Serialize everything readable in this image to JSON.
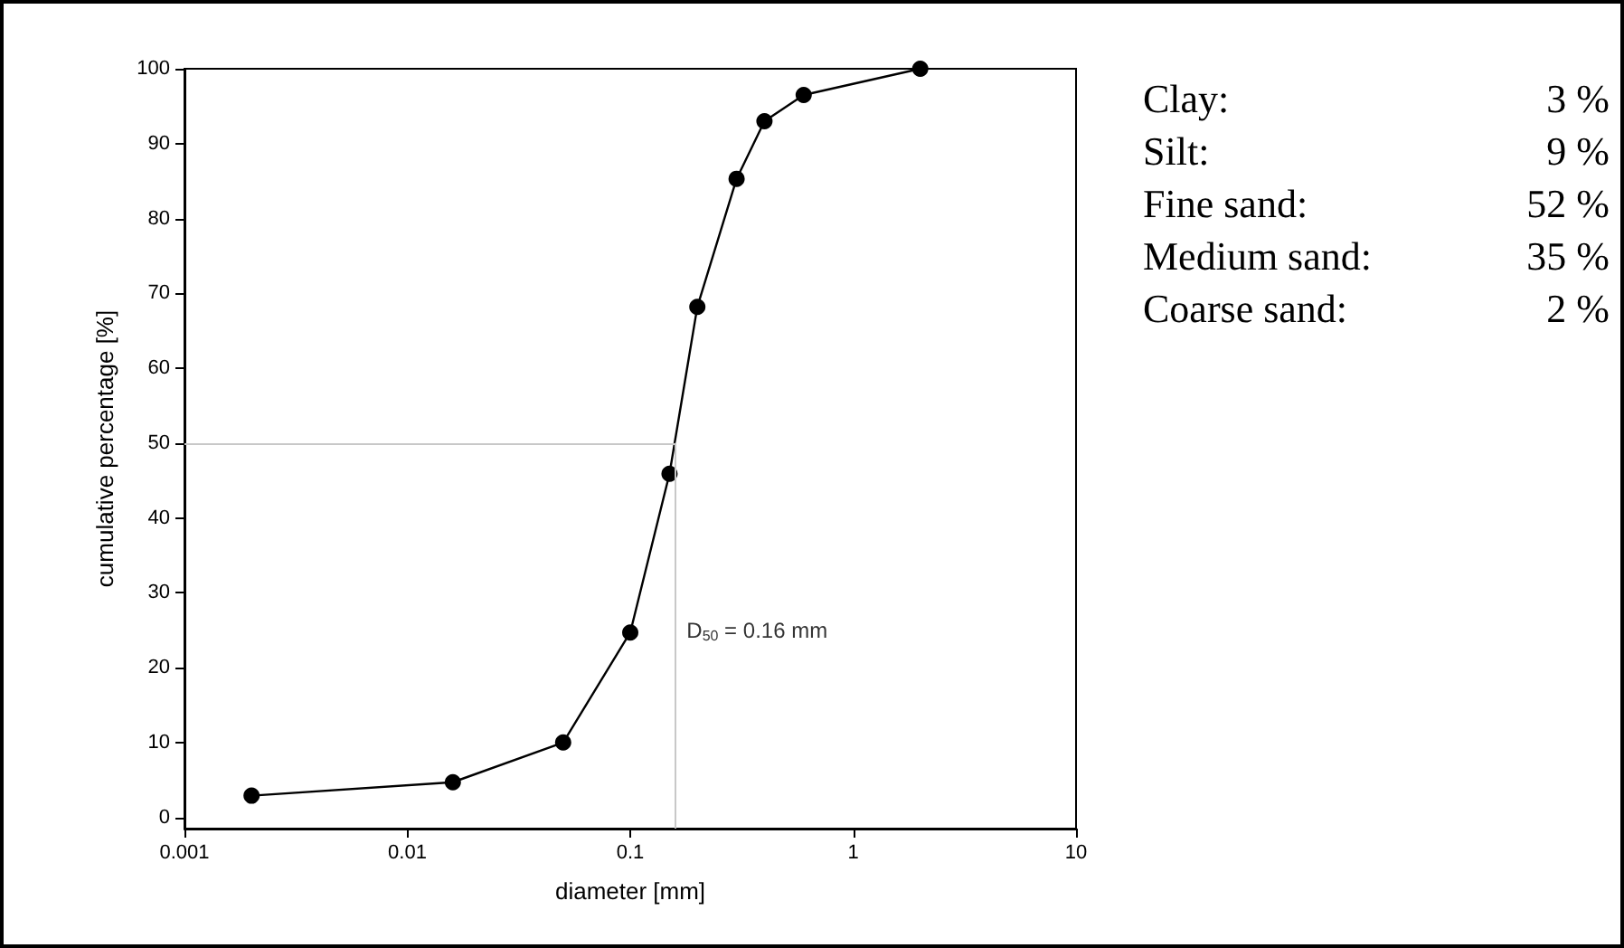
{
  "chart_data": {
    "type": "line",
    "xlabel": "diameter [mm]",
    "ylabel": "cumulative percentage [%]",
    "x": [
      0.002,
      0.016,
      0.05,
      0.1,
      0.15,
      0.2,
      0.3,
      0.4,
      0.6,
      2
    ],
    "series": [
      {
        "color": "#000000",
        "values": [
          2.9,
          4.7,
          10,
          24.7,
          45.9,
          68.2,
          85.3,
          93,
          96.5,
          100
        ]
      }
    ],
    "log": "x",
    "marker": "circle",
    "line_style": "solid",
    "grid": false,
    "xlim": [
      0.001,
      10
    ],
    "xticks": [
      0.001,
      0.01,
      0.1,
      1,
      10
    ],
    "ylim": [
      -1.5,
      100
    ],
    "yticks": [
      0,
      10,
      20,
      30,
      40,
      50,
      60,
      70,
      80,
      90,
      100
    ],
    "ref_lines": [
      {
        "axis": "y",
        "value": 50,
        "color": "#c8c8c8"
      },
      {
        "axis": "x",
        "value": 0.16,
        "color": "#c8c8c8"
      }
    ],
    "annotations": [
      {
        "text": "D$_{50}$ = 0.16 mm",
        "x": 0.16,
        "y": 25
      },
      "Clay: 3 %",
      "Silt: 9 %",
      "Fine sand: 52 %",
      "Medium sand: 35 %",
      "Coarse sand: 2 %"
    ]
  }
}
